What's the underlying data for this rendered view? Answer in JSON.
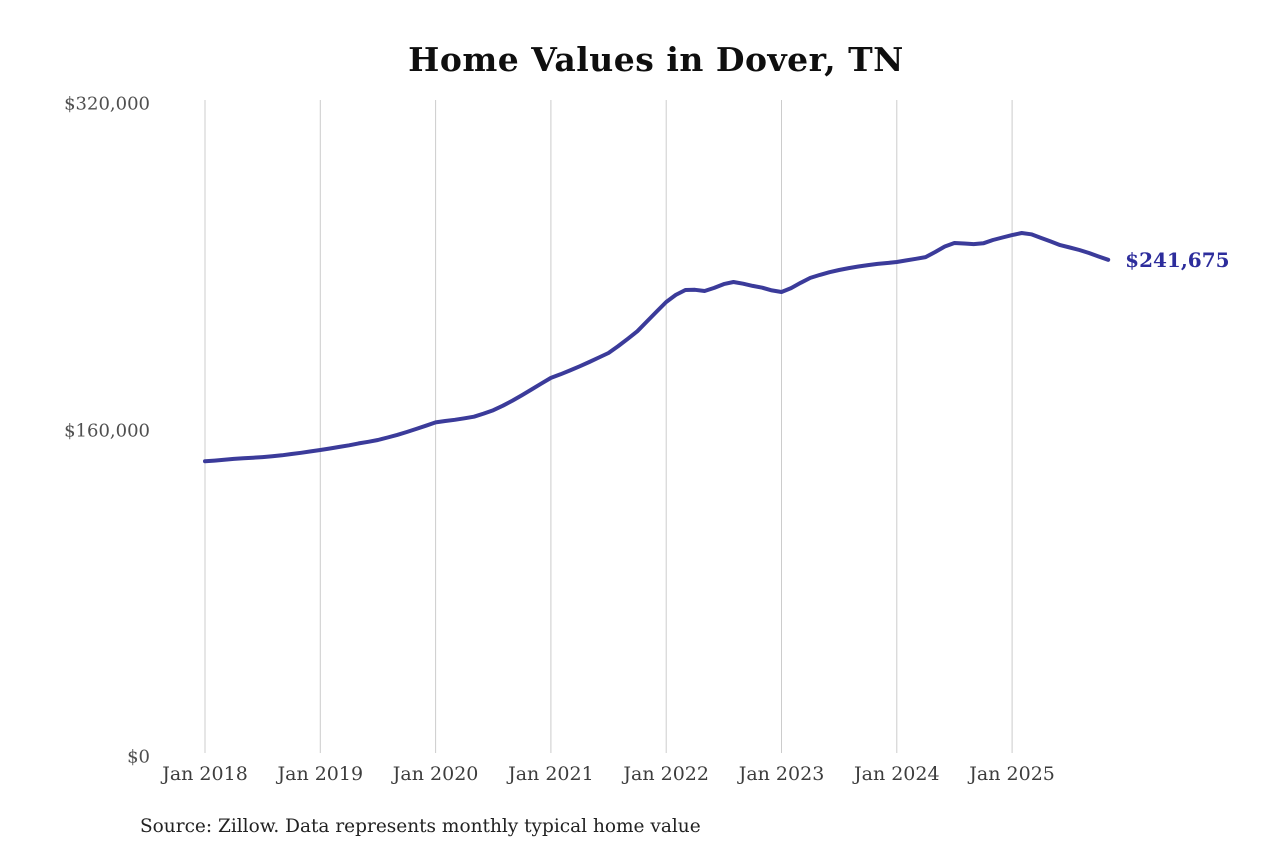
{
  "page": {
    "background": "#ffffff"
  },
  "header": {
    "title": "Home Values in Dover, TN"
  },
  "footer": {
    "source_note": "Source: Zillow. Data represents monthly typical home value"
  },
  "colors": {
    "line": "#3b3b9a",
    "end_label": "#2d2d9c",
    "grid": "#cccccc",
    "y_tick_text": "#4f4f4f",
    "x_tick_text": "#3d3d3d",
    "title_text": "#0f0f0f",
    "source_text": "#222222",
    "background": "#ffffff"
  },
  "chart_data": {
    "type": "line",
    "title": "Home Values in Dover, TN",
    "unit": "USD",
    "ylabel": "",
    "xlabel": "",
    "ylim": [
      0,
      320000
    ],
    "grid": "vertical-only",
    "legend": "none",
    "y_ticks": [
      {
        "label": "$0",
        "value": 0
      },
      {
        "label": "$160,000",
        "value": 160000
      },
      {
        "label": "$320,000",
        "value": 320000
      }
    ],
    "x_ticks": [
      {
        "label": "Jan 2018",
        "month_index": 0
      },
      {
        "label": "Jan 2019",
        "month_index": 12
      },
      {
        "label": "Jan 2020",
        "month_index": 24
      },
      {
        "label": "Jan 2021",
        "month_index": 36
      },
      {
        "label": "Jan 2022",
        "month_index": 48
      },
      {
        "label": "Jan 2023",
        "month_index": 60
      },
      {
        "label": "Jan 2024",
        "month_index": 72
      },
      {
        "label": "Jan 2025",
        "month_index": 84
      }
    ],
    "end_annotation": {
      "label": "$241,675",
      "value": 241675
    },
    "x": [
      "2018-01",
      "2018-02",
      "2018-03",
      "2018-04",
      "2018-05",
      "2018-06",
      "2018-07",
      "2018-08",
      "2018-09",
      "2018-10",
      "2018-11",
      "2018-12",
      "2019-01",
      "2019-02",
      "2019-03",
      "2019-04",
      "2019-05",
      "2019-06",
      "2019-07",
      "2019-08",
      "2019-09",
      "2019-10",
      "2019-11",
      "2019-12",
      "2020-01",
      "2020-02",
      "2020-03",
      "2020-04",
      "2020-05",
      "2020-06",
      "2020-07",
      "2020-08",
      "2020-09",
      "2020-10",
      "2020-11",
      "2020-12",
      "2021-01",
      "2021-02",
      "2021-03",
      "2021-04",
      "2021-05",
      "2021-06",
      "2021-07",
      "2021-08",
      "2021-09",
      "2021-10",
      "2021-11",
      "2021-12",
      "2022-01",
      "2022-02",
      "2022-03",
      "2022-04",
      "2022-05",
      "2022-06",
      "2022-07",
      "2022-08",
      "2022-09",
      "2022-10",
      "2022-11",
      "2022-12",
      "2023-01",
      "2023-02",
      "2023-03",
      "2023-04",
      "2023-05",
      "2023-06",
      "2023-07",
      "2023-08",
      "2023-09",
      "2023-10",
      "2023-11",
      "2023-12",
      "2024-01",
      "2024-02",
      "2024-03",
      "2024-04",
      "2024-05",
      "2024-06",
      "2024-07",
      "2024-08",
      "2024-09",
      "2024-10",
      "2024-11",
      "2024-12",
      "2025-01",
      "2025-02",
      "2025-03",
      "2025-04",
      "2025-05",
      "2025-06",
      "2025-07",
      "2025-08",
      "2025-09",
      "2025-10",
      "2025-11"
    ],
    "values": [
      143000,
      143300,
      143700,
      144100,
      144400,
      144700,
      145000,
      145400,
      145900,
      146500,
      147100,
      147800,
      148500,
      149200,
      150000,
      150800,
      151700,
      152500,
      153400,
      154600,
      155900,
      157300,
      158800,
      160400,
      162000,
      162700,
      163300,
      164000,
      164800,
      166300,
      168000,
      170200,
      172700,
      175400,
      178200,
      181000,
      183800,
      185600,
      187500,
      189500,
      191600,
      193800,
      196000,
      199400,
      203000,
      206700,
      211500,
      216300,
      221000,
      224500,
      226900,
      227000,
      226400,
      227900,
      229800,
      230800,
      230000,
      228900,
      228000,
      226700,
      225900,
      227800,
      230400,
      232800,
      234300,
      235600,
      236700,
      237600,
      238400,
      239100,
      239700,
      240100,
      240600,
      241400,
      242200,
      243000,
      245500,
      248200,
      249900,
      249700,
      249400,
      249800,
      251400,
      252600,
      253800,
      254800,
      254200,
      252400,
      250700,
      248900,
      247700,
      246500,
      245000,
      243300,
      241675
    ]
  }
}
